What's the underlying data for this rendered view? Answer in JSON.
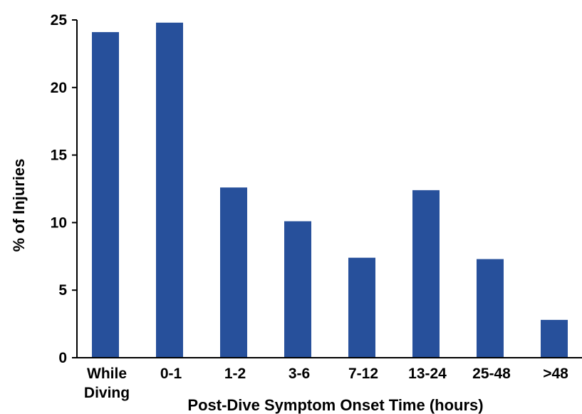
{
  "chart_data": {
    "type": "bar",
    "categories": [
      [
        "While",
        "Diving"
      ],
      [
        "0-1"
      ],
      [
        "1-2"
      ],
      [
        "3-6"
      ],
      [
        "7-12"
      ],
      [
        "13-24"
      ],
      [
        "25-48"
      ],
      [
        ">48"
      ]
    ],
    "values": [
      24.1,
      24.8,
      12.6,
      10.1,
      7.4,
      12.4,
      7.3,
      2.8
    ],
    "xlabel": "Post-Dive Symptom Onset Time (hours)",
    "ylabel": "% of Injuries",
    "ylim": [
      0,
      25
    ],
    "yticks": [
      "0",
      "5",
      "10",
      "15",
      "20",
      "25"
    ],
    "grid": false,
    "bar_color": "#27509b"
  }
}
